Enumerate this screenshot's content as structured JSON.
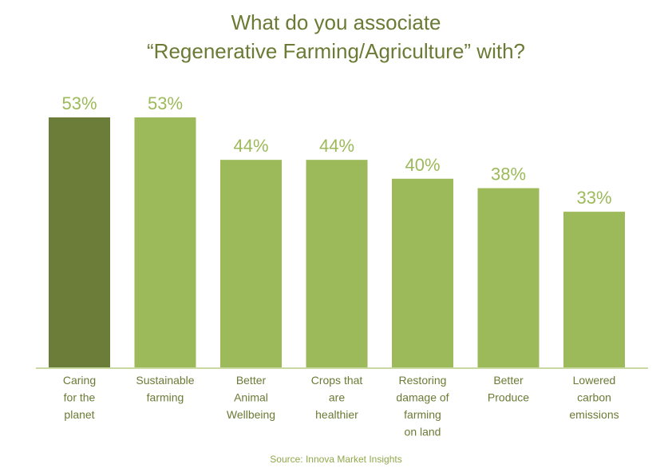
{
  "chart_data": {
    "type": "bar",
    "title_line1": "What do you associate",
    "title_line2": "“Regenerative Farming/Agriculture” with?",
    "categories": [
      [
        "Caring",
        "for the",
        "planet"
      ],
      [
        "Sustainable",
        "farming"
      ],
      [
        "Better",
        "Animal",
        "Wellbeing"
      ],
      [
        "Crops that",
        "are",
        "healthier"
      ],
      [
        "Restoring",
        "damage of",
        "farming",
        "on land"
      ],
      [
        "Better",
        "Produce"
      ],
      [
        "Lowered",
        "carbon",
        "emissions"
      ]
    ],
    "values": [
      53,
      53,
      44,
      44,
      40,
      38,
      33
    ],
    "value_labels": [
      "53%",
      "53%",
      "44%",
      "44%",
      "40%",
      "38%",
      "33%"
    ],
    "highlight_index": 0,
    "ylim": [
      0,
      53
    ],
    "grid": false,
    "colors": {
      "highlight": "#6b7d38",
      "bar": "#9dba5a",
      "label": "#9dba5a",
      "title": "#6b7a35",
      "axis": "#b9cc86",
      "category_text": "#6b7a35"
    },
    "source": "Source: Innova Market Insights"
  }
}
